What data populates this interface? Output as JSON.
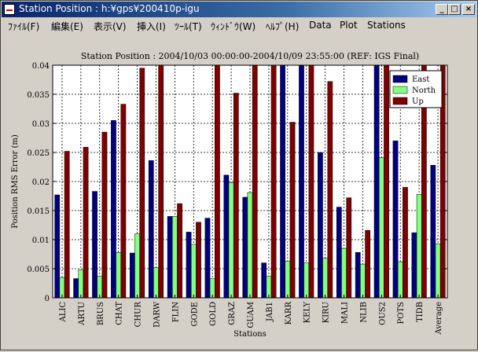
{
  "window": {
    "title": "Station Position : h:¥gps¥200410p-igu",
    "controls": {
      "minimize": "_",
      "maximize": "□",
      "close": "×"
    }
  },
  "menu": [
    {
      "label": "ﾌｧｲﾙ(F)"
    },
    {
      "label": "編集(E)"
    },
    {
      "label": "表示(V)"
    },
    {
      "label": "挿入(I)"
    },
    {
      "label": "ﾂｰﾙ(T)"
    },
    {
      "label": "ｳｨﾝﾄﾞｳ(W)"
    },
    {
      "label": "ﾍﾙﾌﾟ(H)"
    },
    {
      "label": "Data"
    },
    {
      "label": "Plot"
    },
    {
      "label": "Stations"
    }
  ],
  "chart_data": {
    "type": "bar",
    "title": "Station Position : 2004/10/03 00:00:00-2004/10/09 23:55:00 (REF: IGS Final)",
    "xlabel": "Stations",
    "ylabel": "Position RMS Error (m)",
    "ylim": [
      0,
      0.04
    ],
    "yticks": [
      0,
      0.005,
      0.01,
      0.015,
      0.02,
      0.025,
      0.03,
      0.035,
      0.04
    ],
    "ytick_labels": [
      "0",
      "0.005",
      "0.01",
      "0.015",
      "0.02",
      "0.025",
      "0.03",
      "0.035",
      "0.04"
    ],
    "grid": true,
    "legend_position": "top-right",
    "categories": [
      "ALIC",
      "ARTU",
      "BRUS",
      "CHAT",
      "CHUR",
      "DARW",
      "FLIN",
      "GODE",
      "GOLD",
      "GRAZ",
      "GUAM",
      "JAB1",
      "KARR",
      "KELY",
      "KIRU",
      "MALI",
      "NLIB",
      "OUS2",
      "POTS",
      "TIDB",
      "Average"
    ],
    "series": [
      {
        "name": "East",
        "color": "#00007f",
        "values": [
          0.0177,
          0.0033,
          0.0183,
          0.0305,
          0.0077,
          0.0236,
          0.014,
          0.0113,
          0.0137,
          0.0211,
          0.0173,
          0.006,
          0.042,
          0.042,
          0.025,
          0.0156,
          0.0078,
          0.042,
          0.027,
          0.0112,
          0.0228
        ]
      },
      {
        "name": "North",
        "color": "#80ff80",
        "values": [
          0.0035,
          0.0048,
          0.0037,
          0.0078,
          0.011,
          0.0052,
          0.014,
          0.0092,
          0.0033,
          0.0198,
          0.0181,
          0.0037,
          0.0063,
          0.006,
          0.0068,
          0.0085,
          0.0058,
          0.0241,
          0.0062,
          0.0178,
          0.0093
        ]
      },
      {
        "name": "Up",
        "color": "#7f0000",
        "values": [
          0.0252,
          0.0259,
          0.0285,
          0.0333,
          0.0395,
          0.042,
          0.0162,
          0.013,
          0.042,
          0.0352,
          0.042,
          0.042,
          0.0302,
          0.042,
          0.0372,
          0.0172,
          0.0116,
          0.042,
          0.019,
          0.042,
          0.042
        ]
      }
    ]
  }
}
